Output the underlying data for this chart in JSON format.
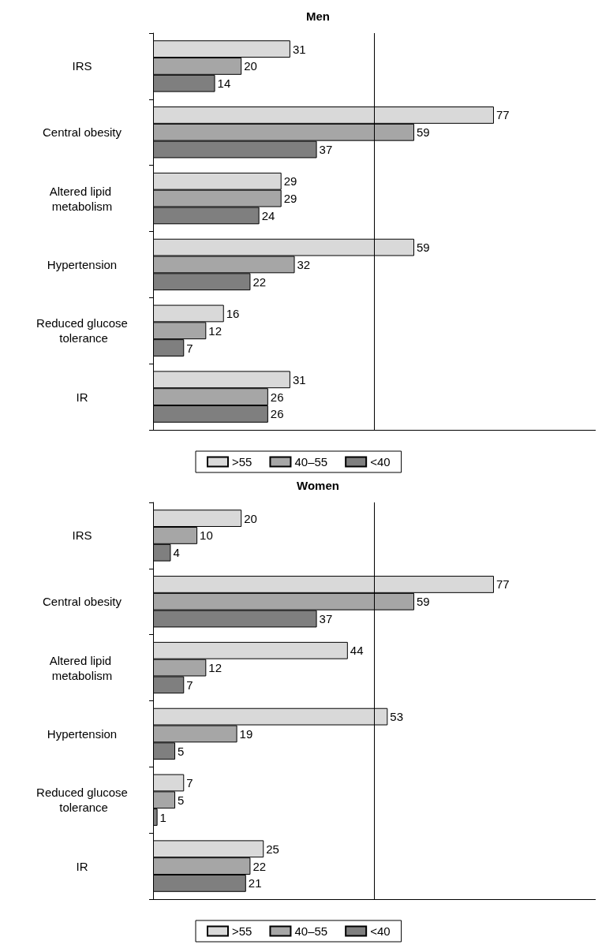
{
  "chart_data": [
    {
      "type": "bar",
      "title": "Men",
      "orientation": "horizontal",
      "categories": [
        "IRS",
        "Central obesity",
        "Altered lipid metabolism",
        "Hypertension",
        "Reduced glucose tolerance",
        "IR"
      ],
      "series": [
        {
          "name": ">55",
          "color": "#d9d9d9",
          "values": [
            31,
            77,
            29,
            59,
            16,
            31
          ]
        },
        {
          "name": "40–55",
          "color": "#a6a6a6",
          "values": [
            20,
            59,
            29,
            32,
            12,
            26
          ]
        },
        {
          "name": "<40",
          "color": "#7f7f7f",
          "values": [
            14,
            37,
            24,
            22,
            7,
            26
          ]
        }
      ],
      "xlim": [
        0,
        100
      ],
      "data_labels": true,
      "grid": false,
      "legend": "bottom",
      "ref_lines": [
        {
          "axis": "x",
          "value": 50,
          "color": "#000000"
        }
      ]
    },
    {
      "type": "bar",
      "title": "Women",
      "orientation": "horizontal",
      "categories": [
        "IRS",
        "Central obesity",
        "Altered lipid metabolism",
        "Hypertension",
        "Reduced glucose tolerance",
        "IR"
      ],
      "series": [
        {
          "name": ">55",
          "color": "#d9d9d9",
          "values": [
            20,
            77,
            44,
            53,
            7,
            25
          ]
        },
        {
          "name": "40–55",
          "color": "#a6a6a6",
          "values": [
            10,
            59,
            12,
            19,
            5,
            22
          ]
        },
        {
          "name": "<40",
          "color": "#7f7f7f",
          "values": [
            4,
            37,
            7,
            5,
            1,
            21
          ]
        }
      ],
      "xlim": [
        0,
        100
      ],
      "data_labels": true,
      "grid": false,
      "legend": "bottom",
      "ref_lines": [
        {
          "axis": "x",
          "value": 50,
          "color": "#000000"
        }
      ]
    }
  ]
}
